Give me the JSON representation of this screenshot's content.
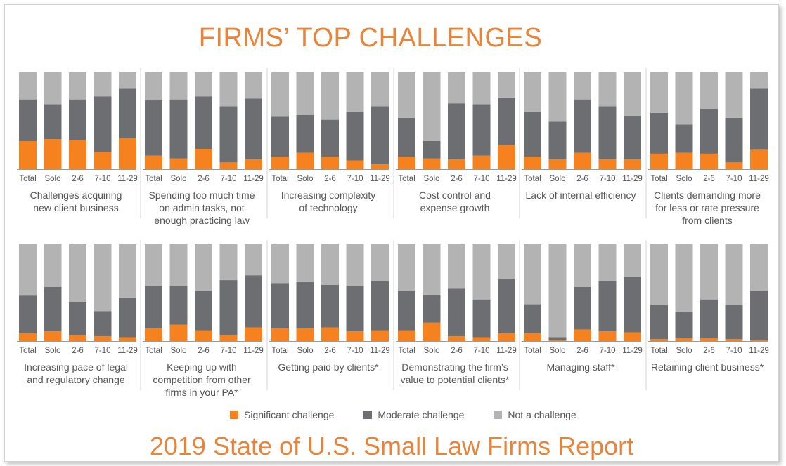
{
  "title": "FIRMS’ TOP CHALLENGES",
  "footer": "2019 State of U.S. Small Law Firms Report",
  "colors": {
    "significant": "#f5821f",
    "moderate": "#6d6e71",
    "not": "#b3b3b3",
    "title": "#e8833a"
  },
  "legend": [
    {
      "key": "significant",
      "label": "Significant challenge"
    },
    {
      "key": "moderate",
      "label": "Moderate challenge"
    },
    {
      "key": "not",
      "label": "Not a challenge"
    }
  ],
  "chart_data": {
    "type": "bar",
    "stacked": true,
    "units": "percent of respondents",
    "ylim": [
      0,
      100
    ],
    "categories": [
      "Total",
      "Solo",
      "2-6",
      "7-10",
      "11-29"
    ],
    "series_names": [
      "Significant challenge",
      "Moderate challenge",
      "Not a challenge"
    ],
    "panels": [
      {
        "label": "Challenges acquiring new client business",
        "label_lines": [
          "Challenges acquiring",
          "new client business"
        ],
        "significant": [
          29,
          31,
          30,
          18,
          32
        ],
        "moderate": [
          43,
          36,
          42,
          57,
          51
        ],
        "not": [
          28,
          33,
          28,
          25,
          17
        ]
      },
      {
        "label": "Spending too much time on admin tasks, not enough practicing law",
        "label_lines": [
          "Spending too much time",
          "on admin tasks, not",
          "enough practicing law"
        ],
        "significant": [
          14,
          11,
          21,
          7,
          10
        ],
        "moderate": [
          57,
          61,
          54,
          58,
          63
        ],
        "not": [
          29,
          28,
          25,
          35,
          27
        ]
      },
      {
        "label": "Increasing complexity of technology",
        "label_lines": [
          "Increasing complexity",
          "of technology"
        ],
        "significant": [
          13,
          17,
          13,
          9,
          5
        ],
        "moderate": [
          41,
          39,
          38,
          50,
          60
        ],
        "not": [
          46,
          44,
          49,
          41,
          35
        ]
      },
      {
        "label": "Cost control and expense growth",
        "label_lines": [
          "Cost control and",
          "expense growth"
        ],
        "significant": [
          13,
          11,
          10,
          14,
          25
        ],
        "moderate": [
          40,
          18,
          58,
          53,
          49
        ],
        "not": [
          47,
          71,
          32,
          33,
          26
        ]
      },
      {
        "label": "Lack of internal efficiency",
        "label_lines": [
          "Lack of internal efficiency"
        ],
        "significant": [
          13,
          10,
          17,
          10,
          10
        ],
        "moderate": [
          46,
          39,
          55,
          55,
          45
        ],
        "not": [
          41,
          51,
          28,
          35,
          45
        ]
      },
      {
        "label": "Clients demanding more for less or rate pressure from clients",
        "label_lines": [
          "Clients demanding more",
          "for less or rate pressure",
          "from clients"
        ],
        "significant": [
          16,
          17,
          16,
          7,
          20
        ],
        "moderate": [
          42,
          29,
          46,
          46,
          63
        ],
        "not": [
          42,
          54,
          38,
          47,
          17
        ]
      },
      {
        "label": "Increasing pace of legal and regulatory change",
        "label_lines": [
          "Increasing pace of legal",
          "and regulatory change"
        ],
        "significant": [
          8,
          10,
          6,
          5,
          4
        ],
        "moderate": [
          39,
          46,
          34,
          26,
          41
        ],
        "not": [
          53,
          44,
          60,
          69,
          55
        ]
      },
      {
        "label": "Keeping up with competition from other firms in your PA*",
        "label_lines": [
          "Keeping up with",
          "competition  from other",
          "firms in your PA*"
        ],
        "significant": [
          13,
          17,
          11,
          6,
          14
        ],
        "moderate": [
          44,
          40,
          41,
          57,
          54
        ],
        "not": [
          43,
          43,
          48,
          37,
          32
        ]
      },
      {
        "label": "Getting paid by clients*",
        "label_lines": [
          "Getting paid by clients*"
        ],
        "significant": [
          13,
          13,
          14,
          10,
          11
        ],
        "moderate": [
          47,
          48,
          44,
          47,
          51
        ],
        "not": [
          40,
          39,
          42,
          43,
          38
        ]
      },
      {
        "label": "Demonstrating the firm’s value to potential clients*",
        "label_lines": [
          "Demonstrating the firm’s",
          "value to potential clients*"
        ],
        "significant": [
          11,
          19,
          5,
          4,
          8
        ],
        "moderate": [
          41,
          29,
          49,
          39,
          56
        ],
        "not": [
          48,
          52,
          46,
          57,
          36
        ]
      },
      {
        "label": "Managing staff*",
        "label_lines": [
          "Managing staff*"
        ],
        "significant": [
          8,
          1,
          12,
          10,
          9
        ],
        "moderate": [
          30,
          3,
          44,
          52,
          57
        ],
        "not": [
          62,
          96,
          44,
          38,
          34
        ]
      },
      {
        "label": "Retaining client business*",
        "label_lines": [
          "Retaining client business*"
        ],
        "significant": [
          2,
          3,
          3,
          2,
          1
        ],
        "moderate": [
          35,
          27,
          40,
          35,
          51
        ],
        "not": [
          63,
          70,
          57,
          63,
          48
        ]
      }
    ]
  }
}
